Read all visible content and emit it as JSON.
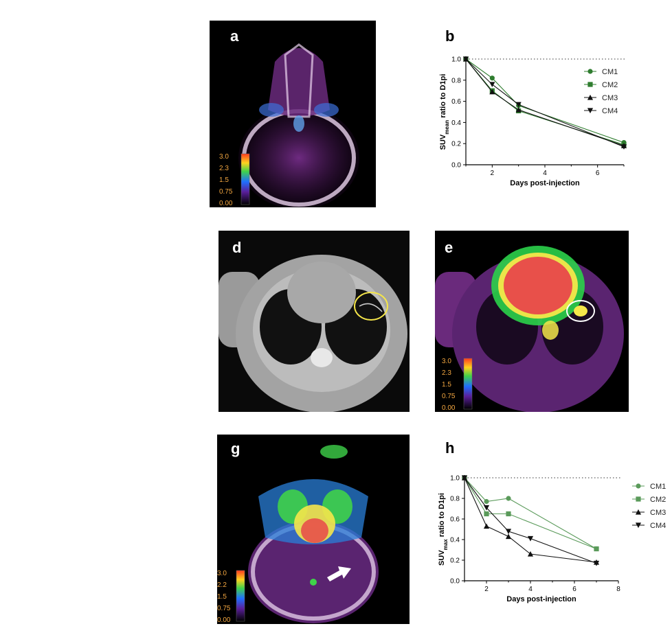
{
  "panels": {
    "a": "a",
    "b": "b",
    "d": "d",
    "e": "e",
    "g": "g",
    "h": "h"
  },
  "colorbars": {
    "a": [
      "3.0",
      "2.3",
      "1.5",
      "0.75",
      "0.00"
    ],
    "e": [
      "3.0",
      "2.3",
      "1.5",
      "0.75",
      "0.00"
    ],
    "g": [
      "3.0",
      "2.2",
      "1.5",
      "0.75",
      "0.00"
    ]
  },
  "colors": {
    "green_dark": "#2f7d2f",
    "green_light": "#5a9a5a",
    "black": "#111111"
  },
  "chart_data": [
    {
      "id": "b",
      "type": "line",
      "xlabel": "Days post-injection",
      "ylabel_main": "SUV",
      "ylabel_sub": "mean",
      "ylabel_rest": " ratio to D1pi",
      "xlim": [
        1,
        7
      ],
      "ylim": [
        0,
        1.0
      ],
      "xticks": [
        2,
        4,
        6
      ],
      "yticks": [
        0.0,
        0.2,
        0.4,
        0.6,
        0.8,
        1.0
      ],
      "yticklabels": [
        "0.0",
        "0.2",
        "0.4",
        "0.6",
        "0.8",
        "1.0"
      ],
      "reference_line": 1.0,
      "legend_position": "top-right",
      "series": [
        {
          "name": "CM1",
          "marker": "circle",
          "color": "#2f7d2f",
          "x": [
            1,
            2,
            3,
            7
          ],
          "y": [
            1.0,
            0.82,
            0.56,
            0.21
          ]
        },
        {
          "name": "CM2",
          "marker": "square",
          "color": "#2f7d2f",
          "x": [
            1,
            2,
            3,
            7
          ],
          "y": [
            1.0,
            0.7,
            0.51,
            0.19
          ]
        },
        {
          "name": "CM3",
          "marker": "triangle-up",
          "color": "#111111",
          "x": [
            1,
            2,
            3,
            7
          ],
          "y": [
            1.0,
            0.69,
            0.52,
            0.18
          ]
        },
        {
          "name": "CM4",
          "marker": "triangle-down",
          "color": "#111111",
          "x": [
            1,
            2,
            3,
            7
          ],
          "y": [
            1.0,
            0.76,
            0.57,
            0.17
          ]
        }
      ]
    },
    {
      "id": "h",
      "type": "line",
      "xlabel": "Days post-injection",
      "ylabel_main": "SUV",
      "ylabel_sub": "max",
      "ylabel_rest": " ratio to D1pi",
      "xlim": [
        1,
        8
      ],
      "ylim": [
        0,
        1.0
      ],
      "xticks": [
        2,
        4,
        6,
        8
      ],
      "yticks": [
        0.0,
        0.2,
        0.4,
        0.6,
        0.8,
        1.0
      ],
      "yticklabels": [
        "0.0",
        "0.2",
        "0.4",
        "0.6",
        "0.8",
        "1.0"
      ],
      "reference_line": 1.0,
      "legend_position": "right",
      "series": [
        {
          "name": "CM1",
          "marker": "circle",
          "color": "#5a9a5a",
          "x": [
            1,
            2,
            3,
            7
          ],
          "y": [
            1.0,
            0.77,
            0.8,
            0.31
          ]
        },
        {
          "name": "CM2",
          "marker": "square",
          "color": "#5a9a5a",
          "x": [
            1,
            2,
            3,
            7
          ],
          "y": [
            1.0,
            0.65,
            0.65,
            0.31
          ]
        },
        {
          "name": "CM3",
          "marker": "triangle-up",
          "color": "#111111",
          "x": [
            1,
            2,
            3,
            4,
            7
          ],
          "y": [
            1.0,
            0.53,
            0.43,
            0.26,
            0.18
          ]
        },
        {
          "name": "CM4",
          "marker": "triangle-down",
          "color": "#111111",
          "x": [
            1,
            2,
            3,
            4,
            7
          ],
          "y": [
            1.0,
            0.71,
            0.48,
            0.41,
            0.17
          ]
        }
      ]
    }
  ]
}
